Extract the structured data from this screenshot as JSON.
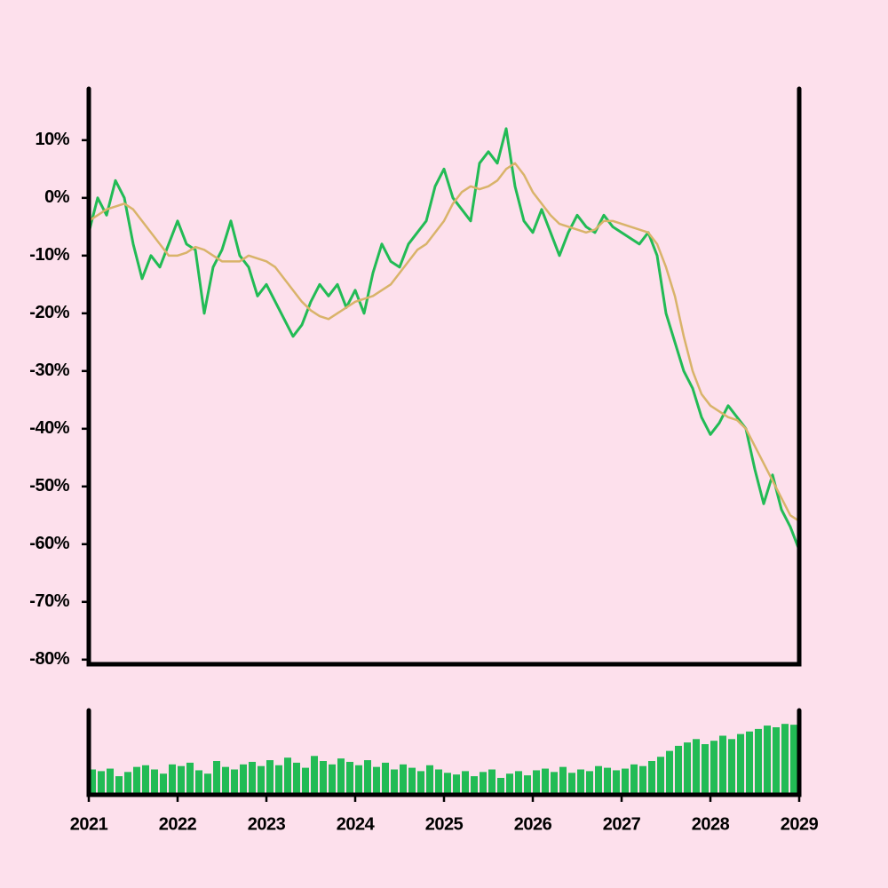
{
  "chart_data": [
    {
      "type": "line",
      "x": [
        2021,
        2021.1,
        2021.2,
        2021.3,
        2021.4,
        2021.5,
        2021.6,
        2021.7,
        2021.8,
        2021.9,
        2022,
        2022.1,
        2022.2,
        2022.3,
        2022.4,
        2022.5,
        2022.6,
        2022.7,
        2022.8,
        2022.9,
        2023,
        2023.1,
        2023.2,
        2023.3,
        2023.4,
        2023.5,
        2023.6,
        2023.7,
        2023.8,
        2023.9,
        2024,
        2024.1,
        2024.2,
        2024.3,
        2024.4,
        2024.5,
        2024.6,
        2024.7,
        2024.8,
        2024.9,
        2025,
        2025.1,
        2025.2,
        2025.3,
        2025.4,
        2025.5,
        2025.6,
        2025.7,
        2025.8,
        2025.9,
        2026,
        2026.1,
        2026.2,
        2026.3,
        2026.4,
        2026.5,
        2026.6,
        2026.7,
        2026.8,
        2026.9,
        2027,
        2027.1,
        2027.2,
        2027.3,
        2027.4,
        2027.5,
        2027.6,
        2027.7,
        2027.8,
        2027.9,
        2028,
        2028.1,
        2028.2,
        2028.3,
        2028.4,
        2028.5,
        2028.6,
        2028.7,
        2028.8,
        2028.9,
        2029
      ],
      "series": [
        {
          "color": "#22bb55",
          "width": 3,
          "values": [
            -6,
            0,
            -3,
            3,
            0,
            -8,
            -14,
            -10,
            -12,
            -8,
            -4,
            -8,
            -9,
            -20,
            -12,
            -9,
            -4,
            -10,
            -12,
            -17,
            -15,
            -18,
            -21,
            -24,
            -22,
            -18,
            -15,
            -17,
            -15,
            -19,
            -16,
            -20,
            -13,
            -8,
            -11,
            -12,
            -8,
            -6,
            -4,
            2,
            5,
            0,
            -2,
            -4,
            6,
            8,
            6,
            12,
            2,
            -4,
            -6,
            -2,
            -6,
            -10,
            -6,
            -3,
            -5,
            -6,
            -3,
            -5,
            -6,
            -7,
            -8,
            -6,
            -10,
            -20,
            -25,
            -30,
            -33,
            -38,
            -41,
            -39,
            -36,
            -38,
            -40,
            -47,
            -53,
            -48,
            -54,
            -57,
            -61
          ]
        },
        {
          "color": "#d9b36a",
          "width": 2.5,
          "values": [
            -4,
            -3,
            -2,
            -1.5,
            -1,
            -2,
            -4,
            -6,
            -8,
            -10,
            -10,
            -9.5,
            -8.5,
            -9,
            -10,
            -11,
            -11,
            -11,
            -10,
            -10.5,
            -11,
            -12,
            -14,
            -16,
            -18,
            -19.5,
            -20.5,
            -21,
            -20,
            -19,
            -18,
            -17.5,
            -17,
            -16,
            -15,
            -13,
            -11,
            -9,
            -8,
            -6,
            -4,
            -1,
            1,
            2,
            1.5,
            2,
            3,
            5,
            6,
            4,
            1,
            -1,
            -3,
            -4.5,
            -5,
            -5.5,
            -6,
            -5.5,
            -4,
            -4,
            -4.5,
            -5,
            -5.5,
            -6,
            -8,
            -12,
            -17,
            -24,
            -30,
            -34,
            -36,
            -37,
            -38,
            -38.5,
            -40,
            -43,
            -46,
            -49,
            -52,
            -55,
            -56
          ]
        }
      ],
      "xlim": [
        2021,
        2029
      ],
      "ylim": [
        -80.8,
        18.9
      ],
      "yticks": [
        {
          "value": 10,
          "label": "10%"
        },
        {
          "value": 0,
          "label": "0%"
        },
        {
          "value": -10,
          "label": "-10%"
        },
        {
          "value": -20,
          "label": "-20%"
        },
        {
          "value": -30,
          "label": "-30%"
        },
        {
          "value": -40,
          "label": "-40%"
        },
        {
          "value": -50,
          "label": "-50%"
        },
        {
          "value": -60,
          "label": "-60%"
        },
        {
          "value": -70,
          "label": "-70%"
        },
        {
          "value": -80,
          "label": "-80%"
        }
      ]
    },
    {
      "type": "bar",
      "x": [
        2021,
        2021.1,
        2021.2,
        2021.3,
        2021.4,
        2021.5,
        2021.6,
        2021.7,
        2021.8,
        2021.9,
        2022,
        2022.1,
        2022.2,
        2022.3,
        2022.4,
        2022.5,
        2022.6,
        2022.7,
        2022.8,
        2022.9,
        2023,
        2023.1,
        2023.2,
        2023.3,
        2023.4,
        2023.5,
        2023.6,
        2023.7,
        2023.8,
        2023.9,
        2024,
        2024.1,
        2024.2,
        2024.3,
        2024.4,
        2024.5,
        2024.6,
        2024.7,
        2024.8,
        2024.9,
        2025,
        2025.1,
        2025.2,
        2025.3,
        2025.4,
        2025.5,
        2025.6,
        2025.7,
        2025.8,
        2025.9,
        2026,
        2026.1,
        2026.2,
        2026.3,
        2026.4,
        2026.5,
        2026.6,
        2026.7,
        2026.8,
        2026.9,
        2027,
        2027.1,
        2027.2,
        2027.3,
        2027.4,
        2027.5,
        2027.6,
        2027.7,
        2027.8,
        2027.9,
        2028,
        2028.1,
        2028.2,
        2028.3,
        2028.4,
        2028.5,
        2028.6,
        2028.7,
        2028.8,
        2028.9,
        2029
      ],
      "values": [
        30,
        28,
        31,
        22,
        27,
        33,
        35,
        30,
        25,
        36,
        34,
        38,
        29,
        25,
        40,
        33,
        30,
        36,
        39,
        34,
        41,
        35,
        44,
        38,
        32,
        46,
        40,
        36,
        43,
        39,
        35,
        41,
        33,
        38,
        30,
        36,
        32,
        28,
        35,
        30,
        26,
        24,
        28,
        22,
        27,
        30,
        20,
        25,
        28,
        23,
        29,
        31,
        27,
        33,
        26,
        30,
        28,
        34,
        32,
        29,
        31,
        36,
        34,
        40,
        45,
        52,
        58,
        62,
        66,
        60,
        64,
        70,
        66,
        72,
        75,
        78,
        82,
        80,
        84,
        83,
        78
      ],
      "color": "#22bb55",
      "xlim": [
        2021,
        2029
      ],
      "xticks": [
        2021,
        2022,
        2023,
        2024,
        2025,
        2026,
        2027,
        2028,
        2029
      ],
      "ylim": [
        0,
        100
      ]
    }
  ]
}
